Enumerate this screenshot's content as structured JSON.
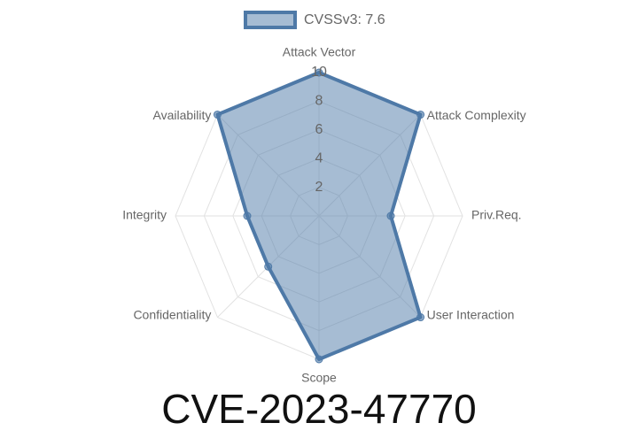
{
  "chart_data": {
    "type": "radar",
    "title": "CVE-2023-47770",
    "categories": [
      "Attack Vector",
      "Attack Complexity",
      "Priv.Req.",
      "User Interaction",
      "Scope",
      "Confidentiality",
      "Integrity",
      "Availability"
    ],
    "series": [
      {
        "name": "CVSSv3: 7.6",
        "color": "#4e79a7",
        "values": [
          10,
          10,
          5,
          10,
          10,
          5,
          5,
          10
        ]
      }
    ],
    "rlim": [
      0,
      10
    ],
    "rticks": [
      2,
      4,
      6,
      8,
      10
    ],
    "grid": true,
    "legend": "top"
  }
}
